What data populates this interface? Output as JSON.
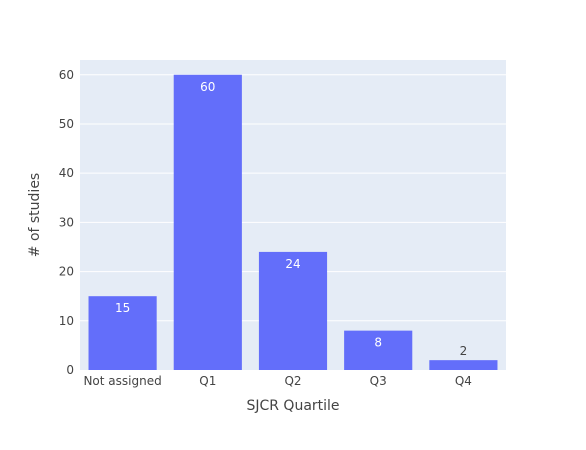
{
  "chart_data": {
    "type": "bar",
    "categories": [
      "Not assigned",
      "Q1",
      "Q2",
      "Q3",
      "Q4"
    ],
    "values": [
      15,
      60,
      24,
      8,
      2
    ],
    "title": "",
    "xlabel": "SJCR Quartile",
    "ylabel": "# of studies",
    "ylim": [
      0,
      63
    ],
    "yticks": [
      0,
      10,
      20,
      30,
      40,
      50,
      60
    ],
    "grid": true,
    "legend": "none",
    "colors": {
      "bar": "#636efa",
      "plot_background": "#e5ecf6",
      "gridline": "#ffffff",
      "label_inside": "#ffffff",
      "label_outside": "#444444",
      "text": "#444444"
    }
  }
}
